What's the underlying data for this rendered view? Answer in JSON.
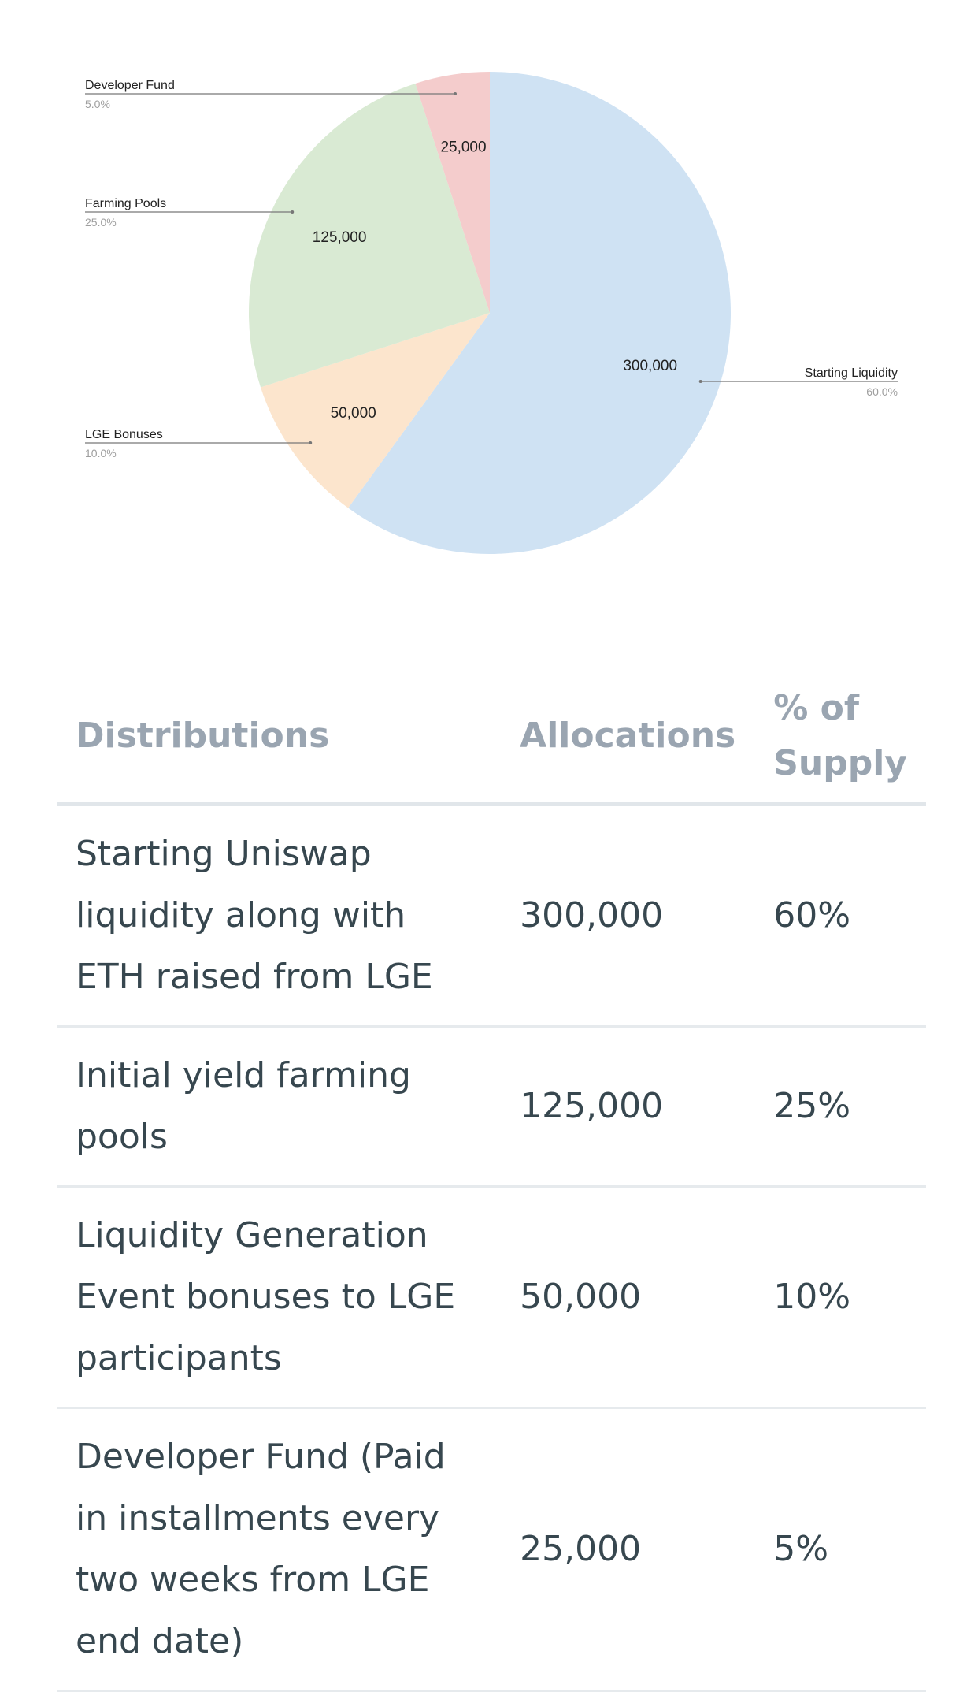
{
  "chart_data": {
    "type": "pie",
    "slices": [
      {
        "label": "Starting Liquidity",
        "value": 300000,
        "value_label": "300,000",
        "percent_label": "60.0%",
        "color": "#cfe2f3"
      },
      {
        "label": "LGE Bonuses",
        "value": 50000,
        "value_label": "50,000",
        "percent_label": "10.0%",
        "color": "#fce5cd"
      },
      {
        "label": "Farming Pools",
        "value": 125000,
        "value_label": "125,000",
        "percent_label": "25.0%",
        "color": "#d9ead3"
      },
      {
        "label": "Developer Fund",
        "value": 25000,
        "value_label": "25,000",
        "percent_label": "5.0%",
        "color": "#f4cccc"
      }
    ],
    "start_angle": "12 o'clock",
    "direction": "clockwise",
    "label_line_color": "#777777"
  },
  "table": {
    "headers": [
      "Distributions",
      "Allocations",
      "% of Supply"
    ],
    "rows": [
      {
        "distribution": "Starting Uniswap liquidity along with ETH raised from LGE",
        "allocation": "300,000",
        "percent": "60%"
      },
      {
        "distribution": "Initial yield farming pools",
        "allocation": "125,000",
        "percent": "25%"
      },
      {
        "distribution": "Liquidity Generation Event bonuses to LGE participants",
        "allocation": "50,000",
        "percent": "10%"
      },
      {
        "distribution": "Developer Fund (Paid in installments every two weeks from LGE end date)",
        "allocation": "25,000",
        "percent": "5%"
      }
    ],
    "header_color": "#9aa5b1",
    "text_color": "#37474f"
  }
}
